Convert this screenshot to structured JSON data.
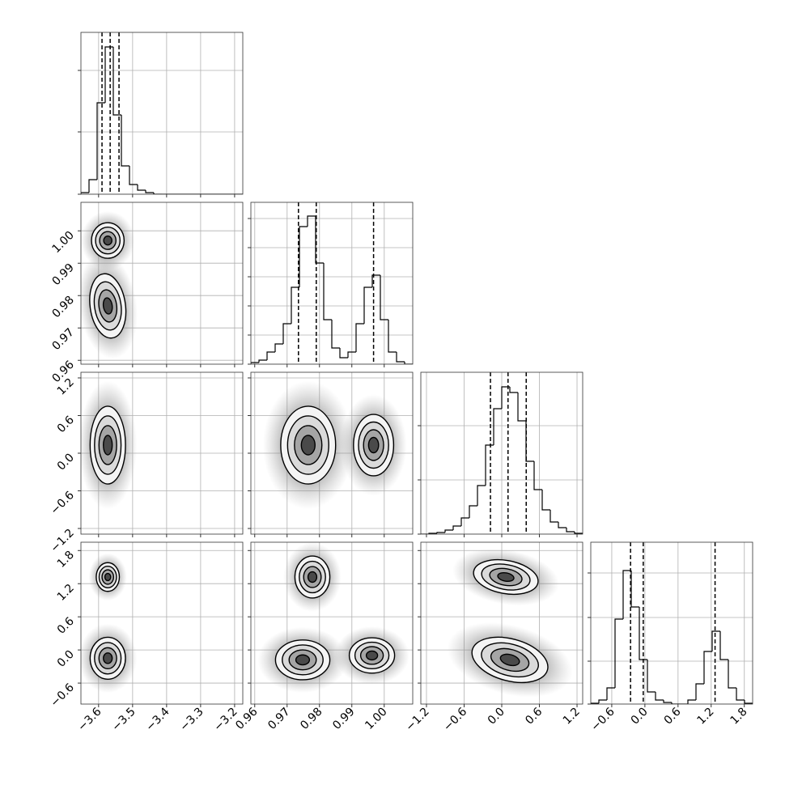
{
  "chart_data": {
    "type": "corner",
    "grid": true,
    "parameters": [
      {
        "lim": [
          -3.652,
          -3.176
        ],
        "ticks": [
          {
            "value": -3.6,
            "label": "−3.6"
          },
          {
            "value": -3.5,
            "label": "−3.5"
          },
          {
            "value": -3.4,
            "label": "−3.4"
          },
          {
            "value": -3.3,
            "label": "−3.3"
          },
          {
            "value": -3.2,
            "label": "−3.2"
          }
        ],
        "hist": {
          "bins": [
            -3.652,
            -3.6282,
            -3.6044,
            -3.5806,
            -3.5568,
            -3.533,
            -3.5092,
            -3.4854,
            -3.4616,
            -3.4378,
            -3.414,
            -3.3902,
            -3.3664,
            -3.3426,
            -3.3188,
            -3.295,
            -3.2712,
            -3.2474,
            -3.2236,
            -3.1998,
            -3.176
          ],
          "counts": [
            2,
            18,
            113,
            182,
            98,
            35,
            12,
            5,
            2,
            0,
            0,
            0,
            0,
            0,
            0,
            0,
            0,
            0,
            0,
            0
          ],
          "ylim": [
            0,
            200
          ],
          "yticks": [
            0,
            77,
            153
          ]
        },
        "quantiles": [
          -3.59,
          -3.566,
          -3.54
        ]
      },
      {
        "lim": [
          0.9588,
          1.0088
        ],
        "ticks": [
          0.96,
          0.97,
          0.98,
          0.99,
          {
            "value": 1.0,
            "label": "1.00"
          }
        ],
        "hist": {
          "bins": [
            0.9588,
            0.9613,
            0.9638,
            0.9663,
            0.9688,
            0.9713,
            0.9738,
            0.9763,
            0.9788,
            0.9813,
            0.9838,
            0.9863,
            0.9888,
            0.9913,
            0.9938,
            0.9963,
            0.9988,
            1.0013,
            1.0038,
            1.0063,
            1.0088
          ],
          "counts": [
            2,
            5,
            15,
            25,
            50,
            95,
            170,
            183,
            125,
            55,
            20,
            8,
            15,
            50,
            95,
            110,
            55,
            15,
            3,
            0
          ],
          "ylim": [
            0,
            200
          ],
          "yticks": [
            0,
            36,
            72,
            108,
            144,
            180
          ]
        },
        "quantiles": [
          0.9735,
          0.979,
          0.9967
        ]
      },
      {
        "lim": [
          -1.29,
          1.29
        ],
        "ticks": [
          {
            "value": -1.2,
            "label": "−1.2"
          },
          {
            "value": -0.6,
            "label": "−0.6"
          },
          {
            "value": 0,
            "label": "0.0"
          },
          0.6,
          1.2
        ],
        "hist": {
          "bins": [
            -1.29,
            -1.161,
            -1.032,
            -0.903,
            -0.774,
            -0.645,
            -0.516,
            -0.387,
            -0.258,
            -0.129,
            0,
            0.129,
            0.258,
            0.387,
            0.516,
            0.645,
            0.774,
            0.903,
            1.032,
            1.161,
            1.29
          ],
          "counts": [
            0,
            1,
            2,
            5,
            10,
            20,
            35,
            60,
            110,
            155,
            182,
            175,
            140,
            90,
            55,
            30,
            15,
            8,
            3,
            1
          ],
          "ylim": [
            0,
            200
          ],
          "yticks": [
            0,
            67,
            134
          ]
        },
        "quantiles": [
          -0.18,
          0.1,
          0.39
        ]
      },
      {
        "lim": [
          -0.98,
          1.95
        ],
        "ticks": [
          {
            "value": -0.6,
            "label": "−0.6"
          },
          {
            "value": 0,
            "label": "0.0"
          },
          0.6,
          1.2,
          1.8
        ],
        "hist": {
          "bins": [
            -0.98,
            -0.8335,
            -0.687,
            -0.5405,
            -0.394,
            -0.2475,
            -0.101,
            0.0455,
            0.192,
            0.3385,
            0.485,
            0.6315,
            0.778,
            0.9245,
            1.071,
            1.2175,
            1.364,
            1.5105,
            1.657,
            1.8035,
            1.95
          ],
          "counts": [
            1,
            5,
            20,
            105,
            165,
            120,
            55,
            15,
            5,
            2,
            0,
            0,
            5,
            25,
            65,
            90,
            55,
            20,
            5,
            1
          ],
          "ylim": [
            0,
            200
          ],
          "yticks": [
            0,
            53,
            107,
            162
          ]
        },
        "quantiles": [
          -0.26,
          -0.03,
          1.27
        ]
      }
    ],
    "pairs": [
      {
        "x": 0,
        "y": 1,
        "clusters": [
          {
            "x": -3.573,
            "y": 0.997,
            "sx": 0.024,
            "sy": 0.00275,
            "rot": 0
          },
          {
            "x": -3.573,
            "y": 0.9768,
            "sx": 0.026,
            "sy": 0.005,
            "rot": -8
          }
        ]
      },
      {
        "x": 0,
        "y": 2,
        "clusters": [
          {
            "x": -3.573,
            "y": 0.129,
            "sx": 0.026,
            "sy": 0.31,
            "rot": 0
          }
        ]
      },
      {
        "x": 0,
        "y": 3,
        "clusters": [
          {
            "x": -3.573,
            "y": 1.32,
            "sx": 0.017,
            "sy": 0.13,
            "rot": 0
          },
          {
            "x": -3.573,
            "y": -0.15,
            "sx": 0.026,
            "sy": 0.19,
            "rot": 0
          }
        ]
      },
      {
        "x": 1,
        "y": 2,
        "clusters": [
          {
            "x": 0.9765,
            "y": 0.129,
            "sx": 0.00424,
            "sy": 0.31,
            "rot": 0
          },
          {
            "x": 0.9967,
            "y": 0.129,
            "sx": 0.0031,
            "sy": 0.245,
            "rot": 0
          }
        ]
      },
      {
        "x": 1,
        "y": 3,
        "clusters": [
          {
            "x": 0.9778,
            "y": 1.32,
            "sx": 0.0027,
            "sy": 0.19,
            "rot": 0
          },
          {
            "x": 0.9748,
            "y": -0.18,
            "sx": 0.0042,
            "sy": 0.18,
            "rot": 0
          },
          {
            "x": 0.9962,
            "y": -0.1,
            "sx": 0.0035,
            "sy": 0.16,
            "rot": 0
          }
        ]
      },
      {
        "x": 2,
        "y": 3,
        "clusters": [
          {
            "x": 0.065,
            "y": 1.32,
            "sx": 0.26,
            "sy": 0.15,
            "rot": 10
          },
          {
            "x": 0.13,
            "y": -0.18,
            "sx": 0.31,
            "sy": 0.19,
            "rot": 15
          }
        ]
      }
    ]
  }
}
